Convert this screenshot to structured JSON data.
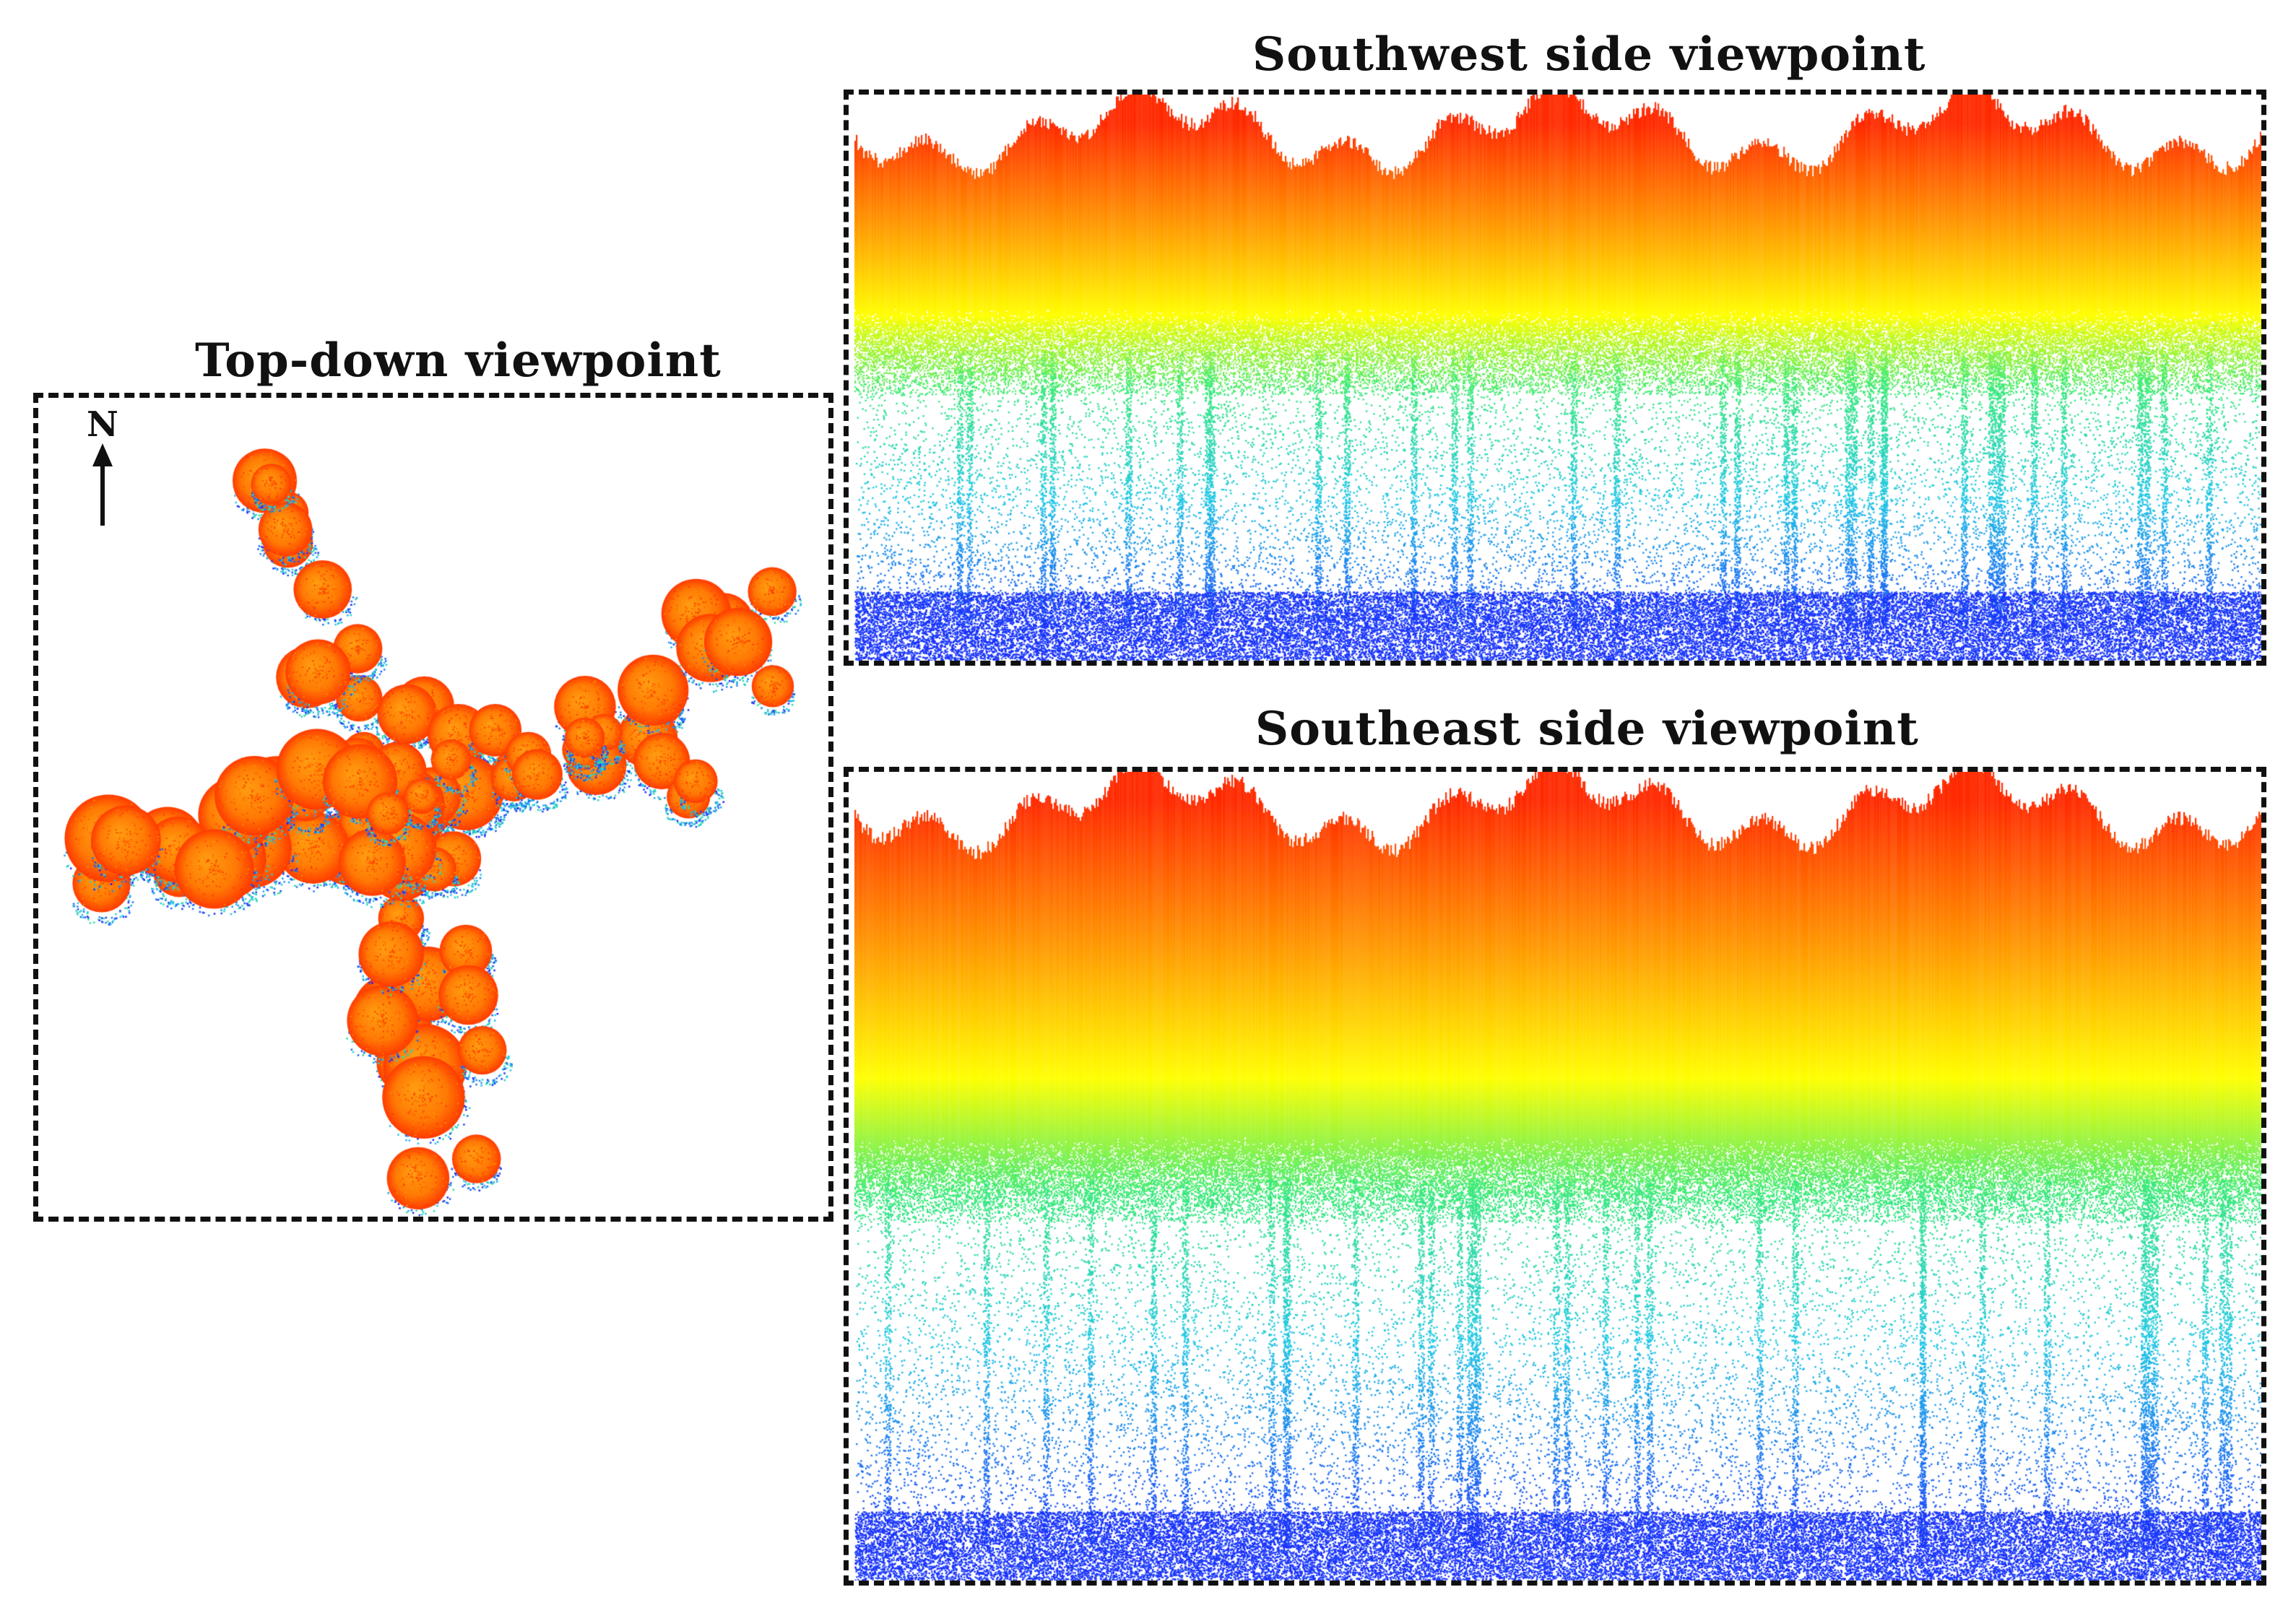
{
  "panels": {
    "topdown": {
      "title": "Top-down viewpoint"
    },
    "southwest": {
      "title": "Southwest side viewpoint"
    },
    "southeast": {
      "title": "Southeast side viewpoint"
    }
  },
  "compass": {
    "label": "N",
    "icon": "north-arrow-icon"
  },
  "colormap": {
    "low": "#1a1aff",
    "mid_low": "#21c8e6",
    "mid": "#ffff00",
    "high": "#ff2a00",
    "background": "#ffffff"
  }
}
